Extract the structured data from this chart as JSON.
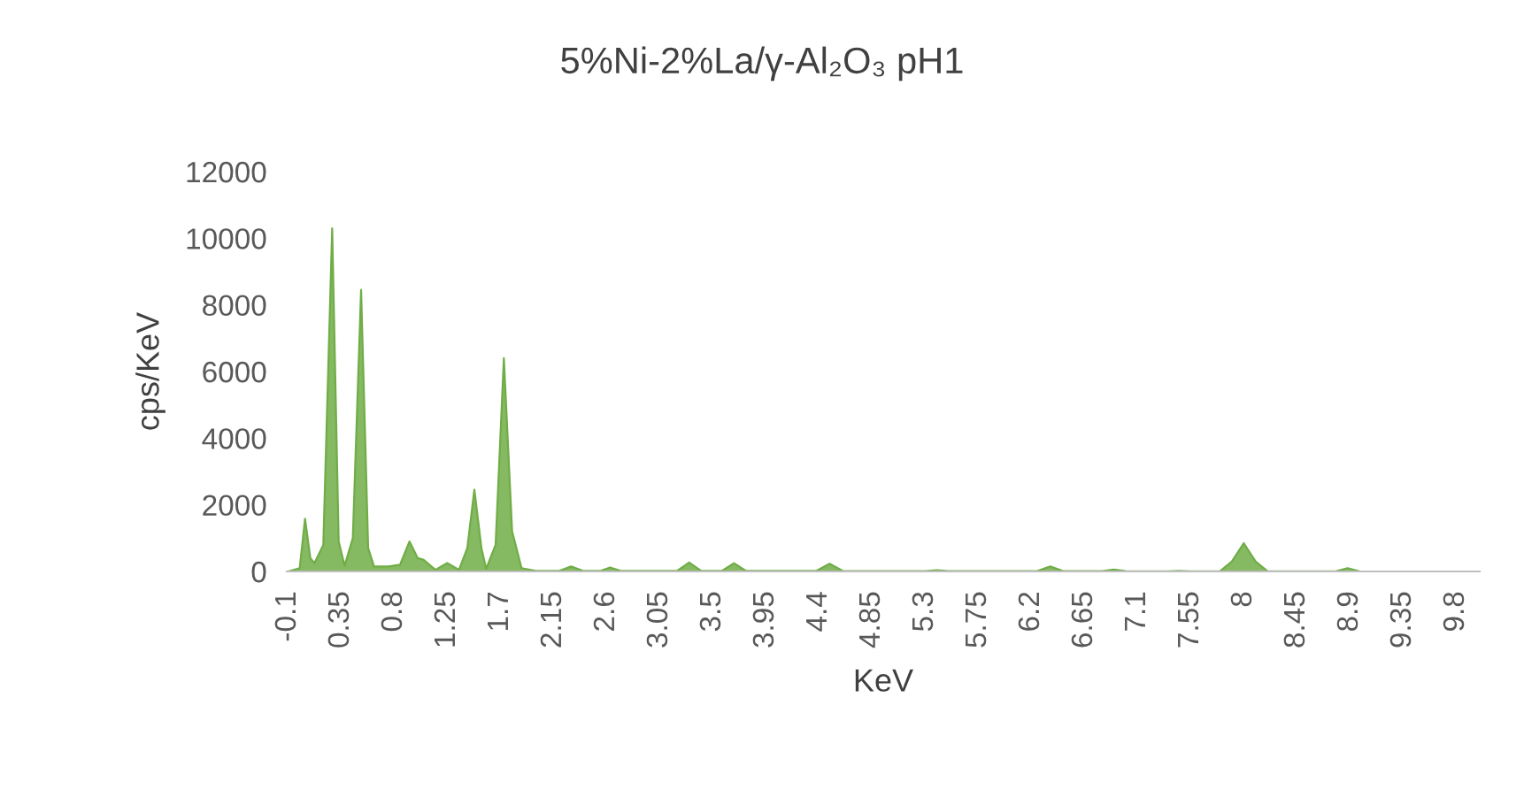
{
  "chart_data": {
    "type": "area",
    "title": "5%Ni-2%La/γ-Al₂O₃ pH1",
    "xlabel": "KeV",
    "ylabel": "cps/KeV",
    "color": "#70ad47",
    "x": [
      -0.1,
      0.0,
      0.045,
      0.09,
      0.125,
      0.2,
      0.275,
      0.33,
      0.38,
      0.45,
      0.52,
      0.58,
      0.63,
      0.75,
      0.85,
      0.93,
      1.0,
      1.05,
      1.15,
      1.25,
      1.35,
      1.42,
      1.48,
      1.54,
      1.58,
      1.66,
      1.73,
      1.8,
      1.88,
      2.0,
      2.2,
      2.3,
      2.4,
      2.55,
      2.63,
      2.72,
      3.2,
      3.3,
      3.4,
      3.58,
      3.68,
      3.78,
      4.38,
      4.49,
      4.6,
      5.3,
      5.4,
      5.5,
      6.25,
      6.36,
      6.47,
      6.8,
      6.9,
      7.0,
      7.35,
      7.45,
      7.55,
      7.8,
      7.9,
      8.0,
      8.1,
      8.2,
      8.78,
      8.88,
      8.98,
      9.5,
      10.0
    ],
    "values": [
      0,
      100,
      1580,
      400,
      250,
      800,
      10300,
      900,
      170,
      1000,
      8450,
      700,
      150,
      150,
      200,
      900,
      400,
      350,
      50,
      250,
      50,
      700,
      2450,
      700,
      80,
      800,
      6400,
      1200,
      100,
      20,
      20,
      150,
      20,
      20,
      120,
      20,
      20,
      270,
      20,
      20,
      250,
      20,
      20,
      230,
      20,
      10,
      40,
      10,
      10,
      150,
      10,
      10,
      60,
      10,
      5,
      20,
      5,
      10,
      300,
      850,
      300,
      10,
      5,
      100,
      5,
      0,
      0
    ],
    "xlim": [
      -0.11,
      10.0
    ],
    "xticks": [
      -0.1,
      0.35,
      0.8,
      1.25,
      1.7,
      2.15,
      2.6,
      3.05,
      3.5,
      3.95,
      4.4,
      4.85,
      5.3,
      5.75,
      6.2,
      6.65,
      7.1,
      7.55,
      8,
      8.45,
      8.9,
      9.35,
      9.8
    ],
    "ylim": [
      0,
      12000
    ],
    "yticks": [
      0,
      2000,
      4000,
      6000,
      8000,
      10000,
      12000
    ],
    "grid": false,
    "legend": false
  }
}
